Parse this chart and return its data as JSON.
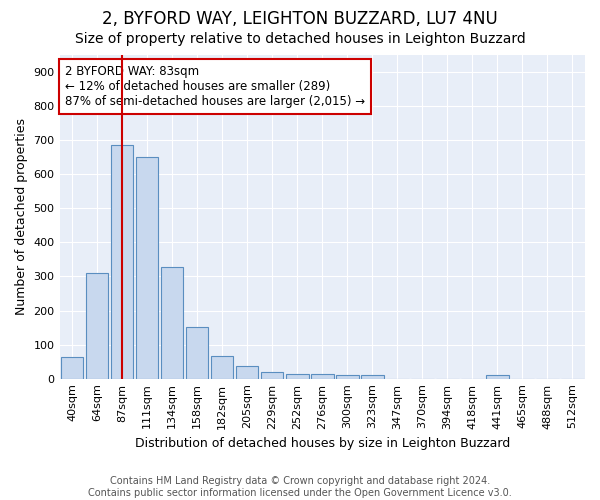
{
  "title": "2, BYFORD WAY, LEIGHTON BUZZARD, LU7 4NU",
  "subtitle": "Size of property relative to detached houses in Leighton Buzzard",
  "xlabel": "Distribution of detached houses by size in Leighton Buzzard",
  "ylabel": "Number of detached properties",
  "categories": [
    "40sqm",
    "64sqm",
    "87sqm",
    "111sqm",
    "134sqm",
    "158sqm",
    "182sqm",
    "205sqm",
    "229sqm",
    "252sqm",
    "276sqm",
    "300sqm",
    "323sqm",
    "347sqm",
    "370sqm",
    "394sqm",
    "418sqm",
    "441sqm",
    "465sqm",
    "488sqm",
    "512sqm"
  ],
  "values": [
    65,
    310,
    685,
    652,
    328,
    153,
    68,
    37,
    20,
    13,
    13,
    10,
    10,
    0,
    0,
    0,
    0,
    12,
    0,
    0,
    0
  ],
  "bar_color": "#c8d8ee",
  "bar_edge_color": "#5a8ec0",
  "vline_x": 2,
  "vline_color": "#cc0000",
  "annotation_text": "2 BYFORD WAY: 83sqm\n← 12% of detached houses are smaller (289)\n87% of semi-detached houses are larger (2,015) →",
  "annotation_box_facecolor": "#ffffff",
  "annotation_box_edge": "#cc0000",
  "ylim": [
    0,
    950
  ],
  "yticks": [
    0,
    100,
    200,
    300,
    400,
    500,
    600,
    700,
    800,
    900
  ],
  "footer": "Contains HM Land Registry data © Crown copyright and database right 2024.\nContains public sector information licensed under the Open Government Licence v3.0.",
  "fig_bg_color": "#ffffff",
  "plot_bg_color": "#e8eef8",
  "grid_color": "#ffffff",
  "title_fontsize": 12,
  "subtitle_fontsize": 10,
  "axis_label_fontsize": 9,
  "tick_fontsize": 8,
  "annotation_fontsize": 8.5,
  "footer_fontsize": 7
}
